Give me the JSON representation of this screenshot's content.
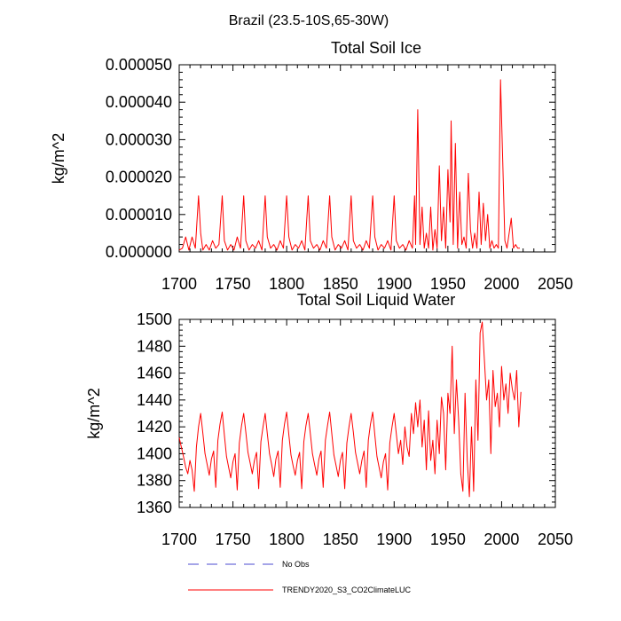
{
  "figure_title": "Brazil (23.5-10S,65-30W)",
  "legend": {
    "items": [
      {
        "label": "No Obs",
        "color": "#4b4bd1",
        "style": "dashed"
      },
      {
        "label": "TRENDY2020_S3_CO2ClimateLUC",
        "color": "#ff0000",
        "style": "solid"
      }
    ]
  },
  "chart_data": [
    {
      "type": "line",
      "title": "Total Soil Ice",
      "xlabel": "",
      "ylabel": "kg/m^2",
      "xlim": [
        1700,
        2050
      ],
      "ylim": [
        0,
        5e-05
      ],
      "x_ticks": [
        1700,
        1750,
        1800,
        1850,
        1900,
        1950,
        2000,
        2050
      ],
      "y_ticks": [
        0,
        1e-05,
        2e-05,
        3e-05,
        4e-05,
        5e-05
      ],
      "y_tick_labels": [
        "0.000000",
        "0.000010",
        "0.000020",
        "0.000030",
        "0.000040",
        "0.000050"
      ],
      "series": [
        {
          "name": "TRENDY2020_S3_CO2ClimateLUC",
          "color": "#ff0000",
          "x": [
            1700,
            1703,
            1706,
            1709,
            1712,
            1715,
            1718,
            1720,
            1722,
            1725,
            1728,
            1731,
            1734,
            1737,
            1740,
            1742,
            1745,
            1748,
            1751,
            1754,
            1757,
            1760,
            1762,
            1765,
            1768,
            1771,
            1774,
            1777,
            1780,
            1782,
            1785,
            1788,
            1791,
            1794,
            1797,
            1800,
            1802,
            1805,
            1808,
            1811,
            1814,
            1817,
            1820,
            1822,
            1825,
            1828,
            1831,
            1834,
            1837,
            1840,
            1842,
            1845,
            1848,
            1851,
            1854,
            1857,
            1860,
            1862,
            1865,
            1868,
            1871,
            1874,
            1877,
            1880,
            1882,
            1885,
            1888,
            1891,
            1894,
            1897,
            1900,
            1902,
            1905,
            1908,
            1911,
            1914,
            1917,
            1919,
            1920,
            1922,
            1924,
            1926,
            1928,
            1930,
            1932,
            1934,
            1936,
            1938,
            1940,
            1942,
            1944,
            1946,
            1948,
            1950,
            1952,
            1953,
            1955,
            1957,
            1959,
            1961,
            1963,
            1965,
            1967,
            1969,
            1971,
            1973,
            1975,
            1977,
            1979,
            1981,
            1983,
            1985,
            1987,
            1989,
            1991,
            1993,
            1995,
            1997,
            1999,
            2001,
            2003,
            2005,
            2007,
            2009,
            2011,
            2013,
            2015,
            2017
          ],
          "y": [
            5e-07,
            1e-06,
            4e-06,
            5e-07,
            4e-06,
            1e-06,
            1.5e-05,
            5e-06,
            5e-07,
            2e-06,
            5e-07,
            3e-06,
            1e-06,
            2e-06,
            1.5e-05,
            3e-06,
            5e-07,
            2e-06,
            5e-07,
            4e-06,
            1e-06,
            1.5e-05,
            3e-06,
            5e-07,
            2e-06,
            1e-06,
            3e-06,
            5e-07,
            1.5e-05,
            4e-06,
            1e-06,
            2e-06,
            5e-07,
            3e-06,
            1e-06,
            1.5e-05,
            4e-06,
            5e-07,
            2e-06,
            1e-06,
            3e-06,
            5e-07,
            1.5e-05,
            3e-06,
            1e-06,
            2e-06,
            5e-07,
            3e-06,
            1e-06,
            1.5e-05,
            4e-06,
            5e-07,
            2e-06,
            1e-06,
            3e-06,
            5e-07,
            1.5e-05,
            3e-06,
            1e-06,
            2e-06,
            5e-07,
            3e-06,
            1e-06,
            1.5e-05,
            4e-06,
            5e-07,
            2e-06,
            1e-06,
            3e-06,
            5e-07,
            1.5e-05,
            3e-06,
            1e-06,
            2e-06,
            5e-07,
            3e-06,
            1e-06,
            1.5e-05,
            2e-06,
            3.8e-05,
            2e-06,
            1.2e-05,
            1e-06,
            5e-06,
            1e-06,
            1.2e-05,
            5e-07,
            6e-06,
            1e-06,
            2.3e-05,
            3e-06,
            1.2e-05,
            1e-06,
            2.2e-05,
            8e-06,
            3.5e-05,
            2e-06,
            2.9e-05,
            1e-06,
            1.6e-05,
            2e-06,
            4e-06,
            1e-06,
            2.1e-05,
            6e-06,
            1e-06,
            5e-06,
            1e-06,
            1.6e-05,
            2e-06,
            1.3e-05,
            3e-06,
            1e-05,
            1e-06,
            3e-06,
            1e-06,
            2e-06,
            1e-06,
            4.6e-05,
            2.5e-05,
            3e-06,
            1e-06,
            5e-06,
            9e-06,
            1e-06,
            2e-06,
            1e-06,
            1e-06
          ]
        }
      ]
    },
    {
      "type": "line",
      "title": "Total Soil Liquid Water",
      "xlabel": "",
      "ylabel": "kg/m^2",
      "xlim": [
        1700,
        2050
      ],
      "ylim": [
        1360,
        1500
      ],
      "x_ticks": [
        1700,
        1750,
        1800,
        1850,
        1900,
        1950,
        2000,
        2050
      ],
      "y_ticks": [
        1360,
        1380,
        1400,
        1420,
        1440,
        1460,
        1480,
        1500
      ],
      "y_tick_labels": [
        "1360",
        "1380",
        "1400",
        "1420",
        "1440",
        "1460",
        "1480",
        "1500"
      ],
      "series": [
        {
          "name": "TRENDY2020_S3_CO2ClimateLUC",
          "color": "#ff0000",
          "x": [
            1700,
            1702,
            1704,
            1706,
            1708,
            1710,
            1712,
            1714,
            1716,
            1718,
            1720,
            1722,
            1724,
            1726,
            1728,
            1730,
            1732,
            1734,
            1736,
            1738,
            1740,
            1742,
            1744,
            1746,
            1748,
            1750,
            1752,
            1754,
            1756,
            1758,
            1760,
            1762,
            1764,
            1766,
            1768,
            1770,
            1772,
            1774,
            1776,
            1778,
            1780,
            1782,
            1784,
            1786,
            1788,
            1790,
            1792,
            1794,
            1796,
            1798,
            1800,
            1802,
            1804,
            1806,
            1808,
            1810,
            1812,
            1814,
            1816,
            1818,
            1820,
            1822,
            1824,
            1826,
            1828,
            1830,
            1832,
            1834,
            1836,
            1838,
            1840,
            1842,
            1844,
            1846,
            1848,
            1850,
            1852,
            1854,
            1856,
            1858,
            1860,
            1862,
            1864,
            1866,
            1868,
            1870,
            1872,
            1874,
            1876,
            1878,
            1880,
            1882,
            1884,
            1886,
            1888,
            1890,
            1892,
            1894,
            1896,
            1898,
            1900,
            1902,
            1904,
            1906,
            1908,
            1910,
            1912,
            1914,
            1916,
            1918,
            1920,
            1922,
            1924,
            1926,
            1928,
            1930,
            1932,
            1934,
            1936,
            1938,
            1940,
            1942,
            1944,
            1946,
            1948,
            1950,
            1952,
            1954,
            1956,
            1958,
            1960,
            1962,
            1964,
            1966,
            1968,
            1970,
            1972,
            1974,
            1976,
            1978,
            1980,
            1982,
            1984,
            1986,
            1988,
            1990,
            1992,
            1994,
            1996,
            1998,
            2000,
            2002,
            2004,
            2006,
            2008,
            2010,
            2012,
            2014,
            2016,
            2018
          ],
          "y": [
            1412,
            1405,
            1398,
            1390,
            1385,
            1395,
            1388,
            1372,
            1405,
            1420,
            1430,
            1415,
            1400,
            1392,
            1384,
            1396,
            1402,
            1375,
            1410,
            1422,
            1431,
            1414,
            1398,
            1390,
            1382,
            1394,
            1400,
            1373,
            1408,
            1421,
            1430,
            1416,
            1401,
            1393,
            1385,
            1395,
            1401,
            1374,
            1409,
            1420,
            1430,
            1415,
            1400,
            1392,
            1383,
            1396,
            1402,
            1375,
            1410,
            1422,
            1431,
            1414,
            1399,
            1391,
            1384,
            1395,
            1401,
            1374,
            1409,
            1421,
            1430,
            1415,
            1400,
            1392,
            1384,
            1396,
            1402,
            1375,
            1410,
            1421,
            1431,
            1415,
            1399,
            1391,
            1383,
            1395,
            1401,
            1374,
            1408,
            1420,
            1430,
            1416,
            1401,
            1393,
            1385,
            1395,
            1402,
            1375,
            1410,
            1422,
            1431,
            1414,
            1398,
            1390,
            1382,
            1394,
            1400,
            1373,
            1408,
            1420,
            1430,
            1415,
            1400,
            1410,
            1392,
            1420,
            1405,
            1398,
            1430,
            1415,
            1438,
            1420,
            1440,
            1405,
            1425,
            1388,
            1432,
            1395,
            1410,
            1385,
            1425,
            1400,
            1442,
            1430,
            1388,
            1445,
            1430,
            1480,
            1415,
            1455,
            1425,
            1385,
            1372,
            1445,
            1395,
            1368,
            1420,
            1372,
            1455,
            1410,
            1490,
            1498,
            1470,
            1440,
            1455,
            1400,
            1462,
            1435,
            1445,
            1420,
            1465,
            1440,
            1452,
            1430,
            1460,
            1448,
            1440,
            1462,
            1420,
            1446
          ]
        }
      ]
    }
  ]
}
